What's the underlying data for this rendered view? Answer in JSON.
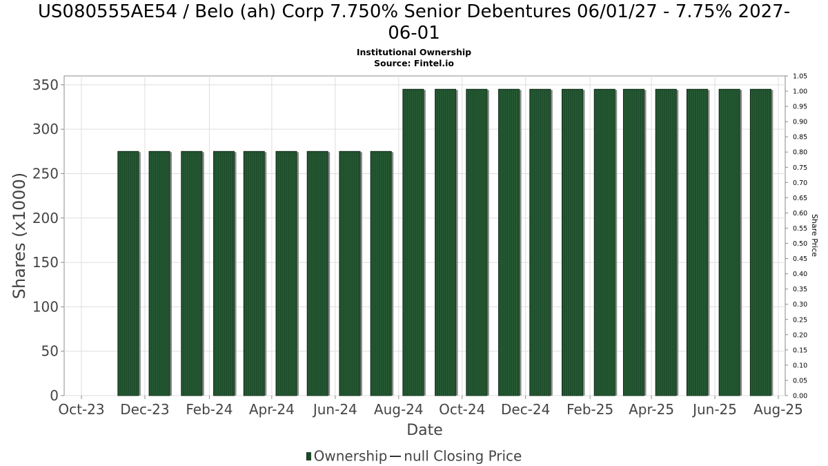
{
  "title_line1": "US080555AE54 / Belo (ah) Corp 7.750% Senior Debentures 06/01/27 - 7.75% 2027-",
  "title_line2": "06-01",
  "subtitle1": "Institutional Ownership",
  "subtitle2": "Source: Fintel.io",
  "legend": {
    "ownership": "Ownership",
    "price": "null Closing Price"
  },
  "colors": {
    "bar": "#1e4d2b",
    "bar_shadow": "#8a8a8a",
    "grid": "#dddddd"
  },
  "chart_data": {
    "type": "bar",
    "xlabel": "Date",
    "ylabel": "Shares (x1000)",
    "y2label": "Share Price",
    "ylim": [
      0,
      360
    ],
    "y2lim": [
      0,
      1.05
    ],
    "yticks": [
      0,
      50,
      100,
      150,
      200,
      250,
      300,
      350
    ],
    "y2ticks": [
      "0.00",
      "0.05",
      "0.10",
      "0.15",
      "0.20",
      "0.25",
      "0.30",
      "0.35",
      "0.40",
      "0.45",
      "0.50",
      "0.55",
      "0.60",
      "0.65",
      "0.70",
      "0.75",
      "0.80",
      "0.85",
      "0.90",
      "0.95",
      "1.00",
      "1.05"
    ],
    "xticks": [
      "Oct-23",
      "Dec-23",
      "Feb-24",
      "Apr-24",
      "Jun-24",
      "Aug-24",
      "Oct-24",
      "Dec-24",
      "Feb-25",
      "Apr-25",
      "Jun-25",
      "Aug-25"
    ],
    "categories": [
      "2023-11-15",
      "2023-12-15",
      "2024-01-15",
      "2024-02-15",
      "2024-03-15",
      "2024-04-15",
      "2024-05-15",
      "2024-06-15",
      "2024-07-15",
      "2024-08-15",
      "2024-09-15",
      "2024-10-15",
      "2024-11-15",
      "2024-12-15",
      "2025-01-15",
      "2025-02-15",
      "2025-03-15",
      "2025-04-15",
      "2025-05-15",
      "2025-06-15",
      "2025-07-15"
    ],
    "series": [
      {
        "name": "Ownership",
        "values": [
          275,
          275,
          275,
          275,
          275,
          275,
          275,
          275,
          275,
          345,
          345,
          345,
          345,
          345,
          345,
          345,
          345,
          345,
          345,
          345,
          345
        ]
      }
    ],
    "grid": true,
    "legend_position": "bottom"
  }
}
